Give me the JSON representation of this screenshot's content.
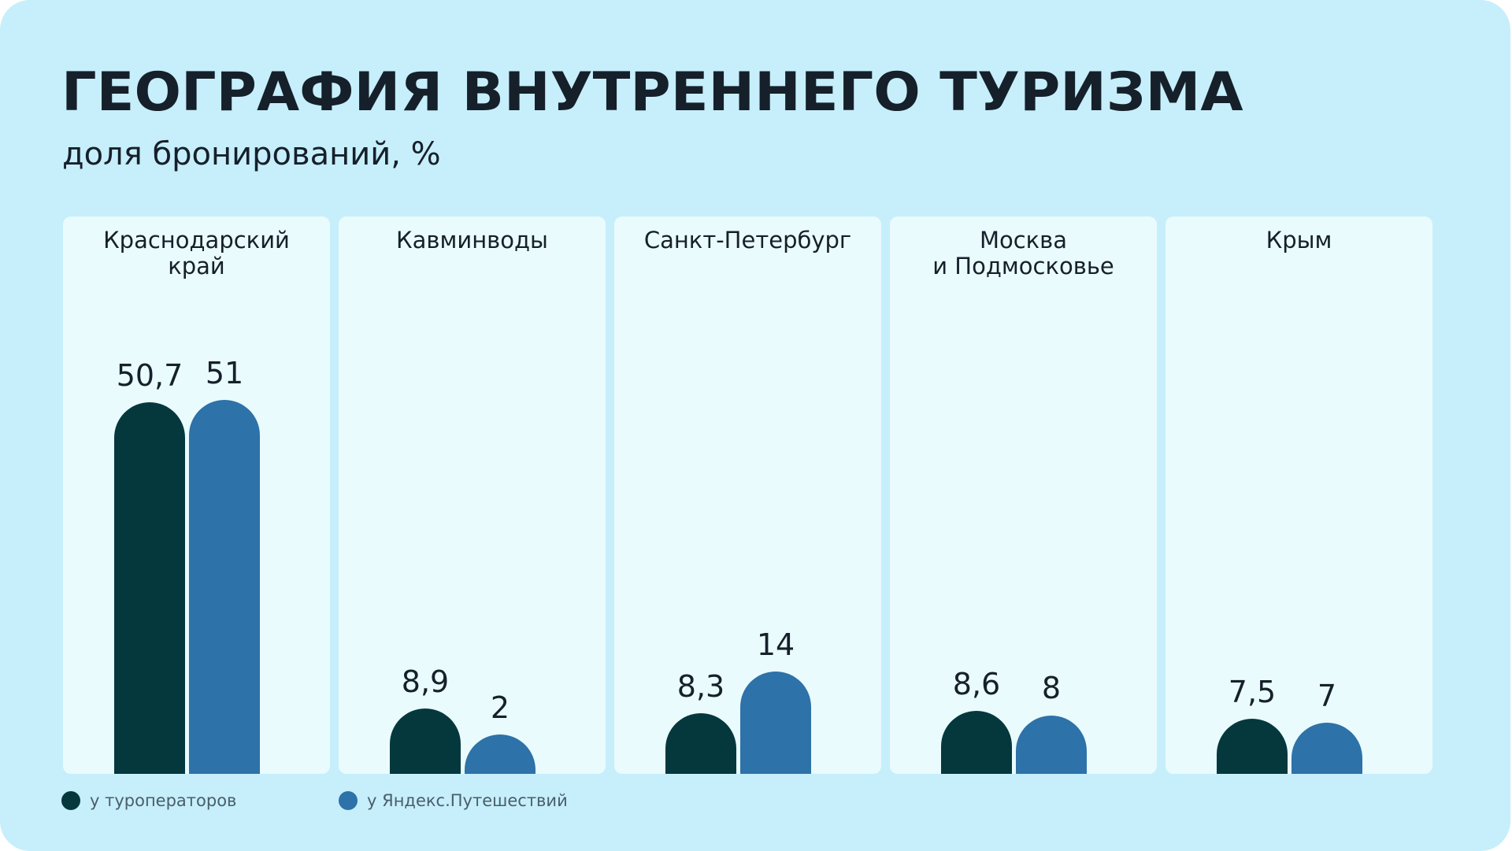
{
  "title": "ГЕОГРАФИЯ ВНУТРЕННЕГО ТУРИЗМА",
  "subtitle": "доля бронирований, %",
  "colors": {
    "background": "#c6effb",
    "panel": "#eafbfd",
    "tour_operators": "#04383d",
    "yandex_travel": "#2d72a8"
  },
  "chart_data": {
    "type": "bar",
    "title": "ГЕОГРАФИЯ ВНУТРЕННЕГО ТУРИЗМА",
    "subtitle": "доля бронирований, %",
    "categories": [
      "Краснодарский\nкрай",
      "Кавминводы",
      "Санкт-Петербург",
      "Москва\nи Подмосковье",
      "Крым"
    ],
    "series": [
      {
        "name": "у туроператоров",
        "values": [
          50.7,
          8.9,
          8.3,
          8.6,
          7.5
        ],
        "labels": [
          "50,7",
          "8,9",
          "8,3",
          "8,6",
          "7,5"
        ]
      },
      {
        "name": "у Яндекс.Путешествий",
        "values": [
          51,
          2,
          14,
          8,
          7
        ],
        "labels": [
          "51",
          "2",
          "14",
          "8",
          "7"
        ]
      }
    ],
    "ylim": [
      0,
      51
    ],
    "grid": false,
    "legend": "bottom-left"
  }
}
